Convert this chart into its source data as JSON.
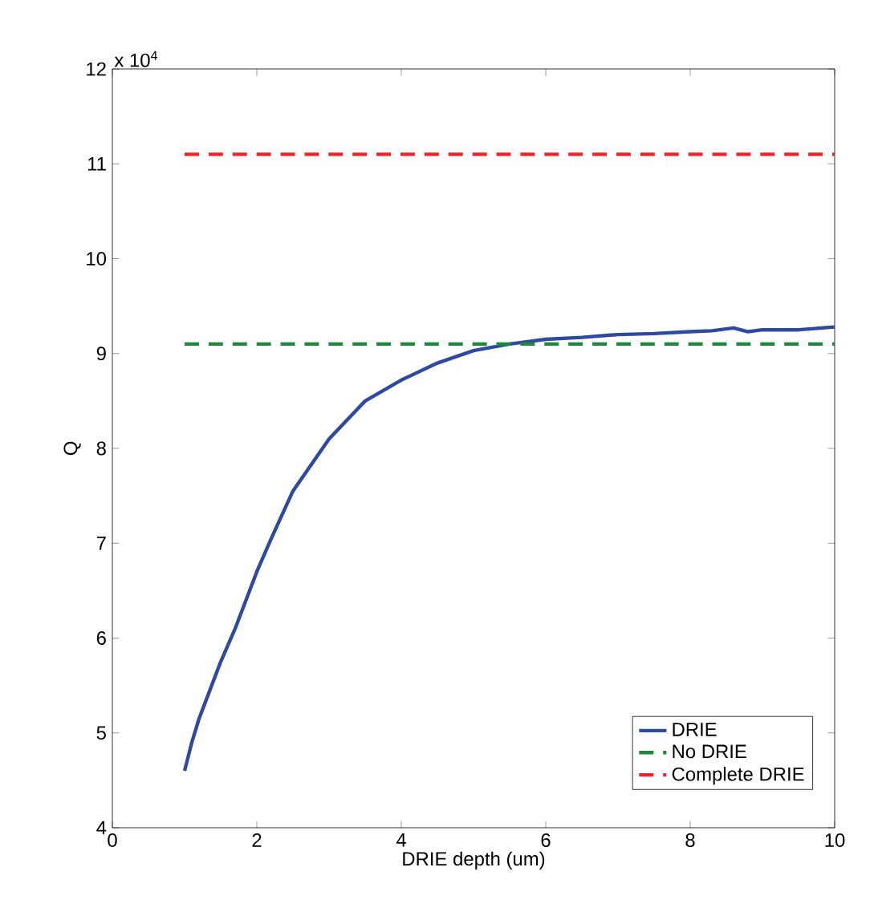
{
  "chart_data": {
    "type": "line",
    "xlabel": "DRIE depth (um)",
    "ylabel": "Q",
    "annotations": [
      "x 10$^{4}$"
    ],
    "xlim": [
      0,
      10
    ],
    "ylim": [
      4,
      12
    ],
    "xticks": [
      0,
      2,
      4,
      6,
      8,
      10
    ],
    "yticks": [
      4,
      5,
      6,
      7,
      8,
      9,
      10,
      11,
      12
    ],
    "legend": "bottom right",
    "marker": "none",
    "series": [
      {
        "name": "DRIE",
        "color": "#2e4aa0",
        "line_style": "solid",
        "x": [
          1,
          1.1,
          1.2,
          1.3,
          1.5,
          1.7,
          2,
          2.2,
          2.5,
          3,
          3.5,
          4,
          4.5,
          5,
          5.5,
          6,
          6.5,
          7,
          7.5,
          8,
          8.3,
          8.6,
          8.8,
          9,
          9.5,
          10
        ],
        "values": [
          4.6,
          4.9,
          5.15,
          5.35,
          5.75,
          6.1,
          6.7,
          7.05,
          7.55,
          8.1,
          8.5,
          8.72,
          8.9,
          9.03,
          9.1,
          9.15,
          9.17,
          9.2,
          9.21,
          9.23,
          9.24,
          9.27,
          9.23,
          9.25,
          9.25,
          9.28
        ]
      },
      {
        "name": "No DRIE",
        "color": "#1a8a3a",
        "line_style": "dashed",
        "x": [
          1,
          10
        ],
        "values": [
          9.1,
          9.1
        ]
      },
      {
        "name": "Complete DRIE",
        "color": "#e8262a",
        "line_style": "dashed",
        "x": [
          1,
          10
        ],
        "values": [
          11.1,
          11.1
        ]
      }
    ]
  }
}
